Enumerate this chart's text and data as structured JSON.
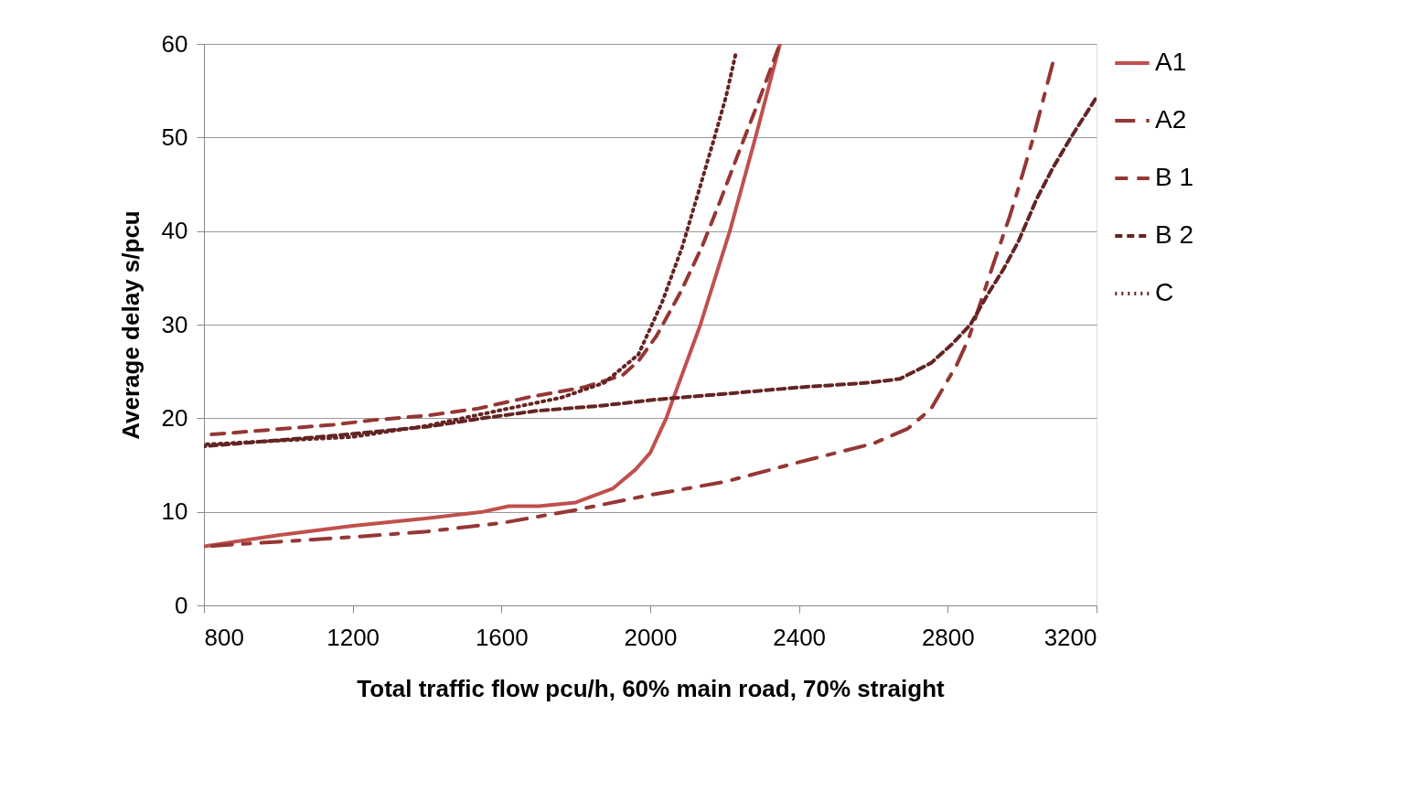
{
  "chart_data": {
    "type": "line",
    "xlabel": "Total traffic flow pcu/h, 60% main road, 70% straight",
    "ylabel": "Average delay s/pcu",
    "xlim": [
      800,
      3200
    ],
    "xticks": [
      800,
      1200,
      1600,
      2000,
      2400,
      2800,
      3200
    ],
    "ylim": [
      0,
      60
    ],
    "yticks": [
      0,
      10,
      20,
      30,
      40,
      50,
      60
    ],
    "grid": "y",
    "legend": "right",
    "series": [
      {
        "name": "A1",
        "color": "#c0504d",
        "line_style": "solid",
        "x": [
          800,
          1000,
          1200,
          1400,
          1550,
          1620,
          1700,
          1800,
          1900,
          1960,
          2000,
          2043,
          2061,
          2135,
          2214,
          2283,
          2349
        ],
        "values": [
          6.3,
          7.5,
          8.5,
          9.3,
          10.0,
          10.6,
          10.6,
          11.0,
          12.5,
          14.5,
          16.3,
          20.0,
          22.0,
          30.0,
          40.0,
          50.0,
          60.0
        ]
      },
      {
        "name": "A2",
        "color": "#953735",
        "line_style": "dashed",
        "x": [
          800,
          1000,
          1200,
          1400,
          1600,
          1800,
          2000,
          2200,
          2400,
          2600,
          2693,
          2755,
          2824,
          2856,
          2922,
          2966,
          2988,
          3028,
          3082
        ],
        "values": [
          6.3,
          6.8,
          7.3,
          7.9,
          8.8,
          10.2,
          11.8,
          13.2,
          15.3,
          17.3,
          18.9,
          21.0,
          25.7,
          28.5,
          36.4,
          41.5,
          44.3,
          49.7,
          57.9
        ]
      },
      {
        "name": "B 1",
        "color": "#953735",
        "line_style": "dashed",
        "x": [
          800,
          1147,
          1255,
          1402,
          1533,
          1680,
          1820,
          1926,
          1970,
          2017,
          2082,
          2140,
          2189,
          2238,
          2288,
          2344
        ],
        "values": [
          18.2,
          19.3,
          19.8,
          20.3,
          21.0,
          22.3,
          23.3,
          24.6,
          26.2,
          28.8,
          33.5,
          38.4,
          43.3,
          48.4,
          53.5,
          59.5
        ]
      },
      {
        "name": "B 2",
        "color": "#632523",
        "line_style": "dashed",
        "x": [
          800,
          1139,
          1402,
          1550,
          1697,
          1860,
          2017,
          2200,
          2400,
          2590,
          2671,
          2755,
          2811,
          2861,
          2910,
          2951,
          2990,
          3040,
          3082,
          3131,
          3197
        ],
        "values": [
          17.0,
          18.1,
          19.1,
          20.0,
          20.8,
          21.3,
          22.0,
          22.6,
          23.3,
          23.8,
          24.2,
          25.9,
          27.9,
          30.0,
          33.4,
          36.0,
          38.9,
          43.5,
          46.7,
          50.0,
          54.1
        ]
      },
      {
        "name": "C",
        "color": "#632523",
        "line_style": "dotted",
        "x": [
          800,
          1200,
          1400,
          1614,
          1761,
          1877,
          1968,
          2032,
          2086,
          2130,
          2172,
          2204,
          2229
        ],
        "values": [
          17.2,
          18.0,
          19.2,
          21.0,
          22.2,
          23.8,
          26.8,
          32.4,
          38.3,
          44.2,
          49.9,
          54.4,
          58.8
        ]
      }
    ]
  }
}
